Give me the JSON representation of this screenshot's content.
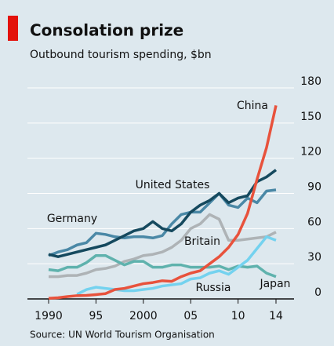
{
  "chart_data": {
    "type": "line",
    "title": "Consolation prize",
    "subtitle": "Outbound tourism spending, $bn",
    "source": "Source: UN World Tourism Organisation",
    "x": [
      1990,
      1991,
      1992,
      1993,
      1994,
      1995,
      1996,
      1997,
      1998,
      1999,
      2000,
      2001,
      2002,
      2003,
      2004,
      2005,
      2006,
      2007,
      2008,
      2009,
      2010,
      2011,
      2012,
      2013,
      2014
    ],
    "xlim": [
      1990,
      2014
    ],
    "xticks": [
      {
        "value": 1990,
        "label": "1990"
      },
      {
        "value": 1995,
        "label": "95"
      },
      {
        "value": 2000,
        "label": "2000"
      },
      {
        "value": 2005,
        "label": "05"
      },
      {
        "value": 2010,
        "label": "10"
      },
      {
        "value": 2014,
        "label": "14"
      }
    ],
    "ylim": [
      0,
      180
    ],
    "yticks": [
      0,
      30,
      60,
      90,
      120,
      150,
      180
    ],
    "grid": true,
    "series": [
      {
        "name": "Britain",
        "color": "#aeb3b6",
        "values": [
          19,
          19,
          20,
          20,
          22,
          25,
          26,
          28,
          32,
          34,
          37,
          38,
          40,
          44,
          50,
          60,
          64,
          72,
          68,
          50,
          50,
          51,
          52,
          53,
          57
        ]
      },
      {
        "name": "Japan",
        "color": "#5fb2ad",
        "values": [
          25,
          24,
          27,
          27,
          31,
          37,
          37,
          33,
          29,
          32,
          32,
          27,
          27,
          29,
          29,
          27,
          27,
          27,
          28,
          25,
          28,
          27,
          28,
          22,
          19
        ]
      },
      {
        "name": "Russia",
        "color": "#74d2ef",
        "values": [
          null,
          null,
          null,
          4,
          8,
          10,
          9,
          8,
          7,
          7,
          8,
          9,
          11,
          12,
          13,
          17,
          18,
          22,
          24,
          21,
          27,
          33,
          43,
          53,
          50
        ]
      },
      {
        "name": "Germany",
        "color": "#4a88a6",
        "values": [
          37,
          40,
          42,
          46,
          48,
          56,
          55,
          53,
          52,
          53,
          53,
          52,
          54,
          64,
          72,
          74,
          74,
          82,
          90,
          80,
          78,
          86,
          82,
          92,
          93
        ]
      },
      {
        "name": "United States",
        "color": "#15495e",
        "values": [
          38,
          36,
          38,
          40,
          42,
          44,
          46,
          50,
          54,
          58,
          60,
          66,
          60,
          58,
          64,
          74,
          80,
          84,
          90,
          82,
          86,
          88,
          100,
          104,
          110
        ]
      },
      {
        "name": "China",
        "color": "#e8523c",
        "values": [
          0.5,
          1,
          2,
          2.8,
          3,
          3.7,
          4.5,
          8,
          9,
          11,
          13,
          14,
          15.5,
          15,
          19,
          22,
          24,
          30,
          36,
          44,
          55,
          73,
          102,
          129,
          165
        ]
      }
    ]
  }
}
